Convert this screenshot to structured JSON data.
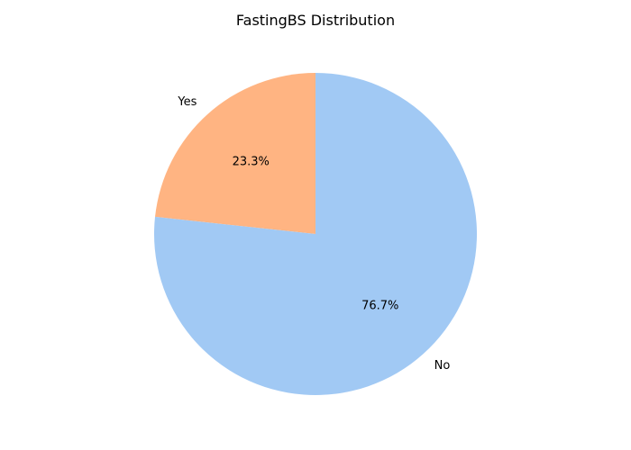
{
  "chart_data": {
    "type": "pie",
    "title": "FastingBS Distribution",
    "categories": [
      "Yes",
      "No"
    ],
    "values": [
      23.3,
      76.7
    ],
    "percent_labels": [
      "23.3%",
      "76.7%"
    ],
    "colors": [
      "#ffb482",
      "#a1c9f4"
    ],
    "start_angle_deg": 90,
    "direction": "counterclockwise",
    "legend": "none"
  }
}
